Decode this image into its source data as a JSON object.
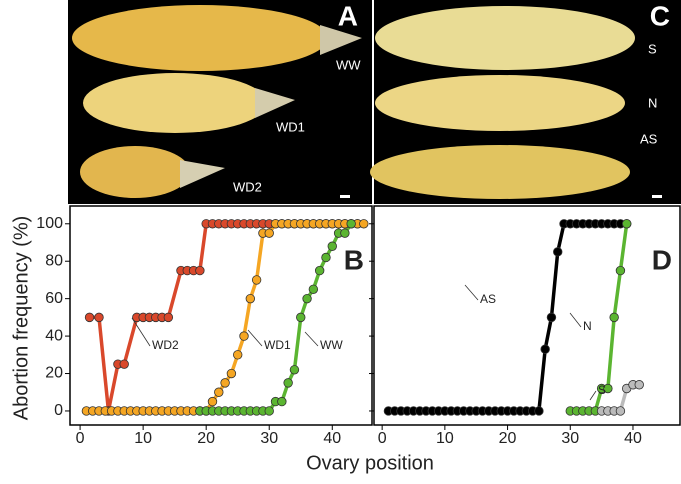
{
  "photos": [
    {
      "letter": "A",
      "labels": [
        "WW",
        "WD1",
        "WD2"
      ]
    },
    {
      "letter": "C",
      "labels": [
        "S",
        "N",
        "AS"
      ]
    }
  ],
  "figure": {
    "ylabel": "Abortion frequency (%)",
    "xlabel": "Ovary position"
  },
  "chart_data": [
    {
      "type": "line",
      "letter": "B",
      "xlim": [
        -1.6,
        46.3
      ],
      "ylim": [
        -7.5,
        109.5
      ],
      "xticks": [
        0,
        10,
        20,
        30,
        40
      ],
      "yticks": [
        0,
        20,
        40,
        60,
        80,
        100
      ],
      "series": [
        {
          "name": "WD2",
          "color": "#d9482b",
          "x": [
            1.5,
            3,
            4.5,
            6,
            7,
            9,
            10,
            11,
            12,
            13,
            14,
            16,
            17,
            18,
            19,
            20,
            21,
            22,
            23,
            24,
            25,
            26,
            27,
            28,
            29,
            30,
            31,
            32,
            33,
            34,
            35,
            36,
            37,
            38,
            39,
            40,
            41,
            42,
            43,
            44
          ],
          "values": [
            50,
            50,
            0,
            25,
            25,
            50,
            50,
            50,
            50,
            50,
            50,
            75,
            75,
            75,
            75,
            100,
            100,
            100,
            100,
            100,
            100,
            100,
            100,
            100,
            100,
            100,
            100,
            100,
            100,
            100,
            100,
            100,
            100,
            100,
            100,
            100,
            100,
            100,
            100,
            100
          ]
        },
        {
          "name": "WD1",
          "color": "#f5a623",
          "x": [
            1,
            2,
            3,
            4,
            5,
            6,
            7,
            8,
            9,
            10,
            11,
            12,
            13,
            14,
            15,
            16,
            17,
            18,
            19,
            20,
            21,
            22,
            23,
            24,
            25,
            26,
            27,
            28,
            29,
            30,
            31,
            32,
            33,
            34,
            35,
            36,
            37,
            38,
            39,
            40,
            41,
            42,
            43,
            44,
            45
          ],
          "values": [
            0,
            0,
            0,
            0,
            0,
            0,
            0,
            0,
            0,
            0,
            0,
            0,
            0,
            0,
            0,
            0,
            0,
            0,
            0,
            0,
            5,
            10,
            15,
            20,
            30,
            40,
            60,
            70,
            95,
            95,
            100,
            100,
            100,
            100,
            100,
            100,
            100,
            100,
            100,
            100,
            100,
            100,
            100,
            100,
            100
          ]
        },
        {
          "name": "WW",
          "color": "#5bb531",
          "x": [
            19,
            20,
            21,
            22,
            23,
            24,
            25,
            26,
            27,
            28,
            29,
            30,
            31,
            32,
            33,
            34,
            35,
            36,
            37,
            38,
            39,
            40,
            41,
            42,
            43
          ],
          "values": [
            0,
            0,
            0,
            0,
            0,
            0,
            0,
            0,
            0,
            0,
            0,
            0,
            5,
            5,
            15,
            22,
            50,
            60,
            65,
            75,
            82,
            88,
            95,
            95,
            100
          ]
        }
      ]
    },
    {
      "type": "line",
      "letter": "D",
      "xlim": [
        -1.3,
        47.5
      ],
      "ylim": [
        -7.5,
        109.5
      ],
      "xticks": [
        0,
        10,
        20,
        30,
        40
      ],
      "yticks": [
        0,
        20,
        40,
        60,
        80,
        100
      ],
      "series": [
        {
          "name": "AS",
          "color": "#000000",
          "x": [
            1,
            2,
            3,
            4,
            5,
            6,
            7,
            8,
            9,
            10,
            11,
            12,
            13,
            14,
            15,
            16,
            17,
            18,
            19,
            20,
            21,
            22,
            23,
            24,
            25,
            26,
            27,
            28,
            29,
            30,
            31,
            32,
            33,
            34,
            35,
            36,
            37,
            38,
            39
          ],
          "values": [
            0,
            0,
            0,
            0,
            0,
            0,
            0,
            0,
            0,
            0,
            0,
            0,
            0,
            0,
            0,
            0,
            0,
            0,
            0,
            0,
            0,
            0,
            0,
            0,
            0,
            33,
            50,
            85,
            100,
            100,
            100,
            100,
            100,
            100,
            100,
            100,
            100,
            100,
            100
          ]
        },
        {
          "name": "N",
          "color": "#5bb531",
          "x": [
            30,
            31,
            32,
            33,
            34,
            35,
            36,
            37,
            38,
            39
          ],
          "values": [
            0,
            0,
            0,
            0,
            0,
            12,
            12,
            50,
            75,
            100
          ]
        },
        {
          "name": "S",
          "color": "#bbbbbb",
          "x": [
            35,
            36,
            37,
            38,
            39,
            40,
            41
          ],
          "values": [
            0,
            0,
            0,
            0,
            12,
            14,
            14
          ]
        }
      ]
    }
  ]
}
